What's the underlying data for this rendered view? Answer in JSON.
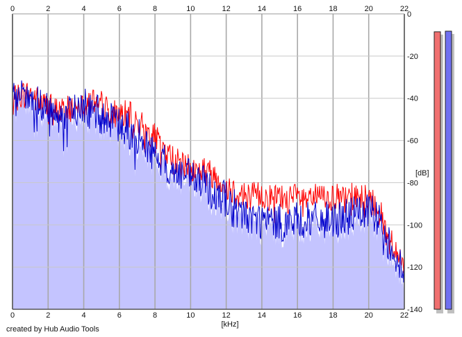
{
  "chart_data": {
    "type": "area",
    "xlabel": "[kHz]",
    "ylabel": "[dB]",
    "xlim": [
      0,
      22
    ],
    "ylim": [
      -140,
      0
    ],
    "x_ticks": [
      0,
      2,
      4,
      6,
      8,
      10,
      12,
      14,
      16,
      18,
      20,
      22
    ],
    "x_tick_labels": [
      "0",
      "2",
      "4",
      "6",
      "8",
      "10",
      "12",
      "14",
      "16",
      "18",
      "20",
      "22"
    ],
    "y_ticks": [
      0,
      -20,
      -40,
      -60,
      -80,
      -100,
      -120,
      -140
    ],
    "y_tick_labels": [
      "0",
      "-20",
      "-40",
      "-60",
      "-80",
      "-100",
      "-120",
      "-140"
    ],
    "grid": true,
    "x_tick_labels_position": "top-and-bottom",
    "y_axis_position": "right",
    "series": [
      {
        "color": "#ff0000",
        "style": "line",
        "x": [
          0,
          0.5,
          1,
          1.5,
          2,
          2.5,
          3,
          3.5,
          4,
          4.5,
          5,
          5.5,
          6,
          6.5,
          7,
          7.5,
          8,
          8.5,
          9,
          9.5,
          10,
          10.5,
          11,
          11.5,
          12,
          12.5,
          13,
          13.5,
          14,
          14.5,
          15,
          15.5,
          16,
          16.5,
          17,
          17.5,
          18,
          18.5,
          19,
          19.5,
          20,
          20.5,
          21,
          21.5,
          22
        ],
        "y": [
          -42,
          -38,
          -38,
          -42,
          -44,
          -46,
          -46,
          -44,
          -41,
          -41,
          -43,
          -47,
          -47,
          -48,
          -51,
          -55,
          -59,
          -64,
          -69,
          -72,
          -74,
          -74,
          -75,
          -77,
          -81,
          -84,
          -86,
          -86,
          -86,
          -87,
          -87,
          -88,
          -87,
          -88,
          -87,
          -87,
          -87,
          -88,
          -87,
          -86,
          -87,
          -91,
          -104,
          -111,
          -121
        ]
      },
      {
        "color": "#0000cc",
        "style": "line",
        "x": [
          0,
          0.5,
          1,
          1.5,
          2,
          2.5,
          3,
          3.5,
          4,
          4.5,
          5,
          5.5,
          6,
          6.5,
          7,
          7.5,
          8,
          8.5,
          9,
          9.5,
          10,
          10.5,
          11,
          11.5,
          12,
          12.5,
          13,
          13.5,
          14,
          14.5,
          15,
          15.5,
          16,
          16.5,
          17,
          17.5,
          18,
          18.5,
          19,
          19.5,
          20,
          20.5,
          21,
          21.5,
          22
        ],
        "y": [
          -42,
          -40,
          -40,
          -44,
          -46,
          -48,
          -48,
          -46,
          -44,
          -46,
          -48,
          -51,
          -53,
          -55,
          -58,
          -62,
          -67,
          -71,
          -75,
          -76,
          -78,
          -80,
          -82,
          -84,
          -88,
          -92,
          -95,
          -97,
          -98,
          -99,
          -99,
          -99,
          -98,
          -98,
          -98,
          -98,
          -97,
          -97,
          -96,
          -94,
          -94,
          -97,
          -106,
          -114,
          -125
        ]
      }
    ],
    "area_color": "#c4c4ff",
    "level_meters": [
      {
        "color": "#f07070",
        "level_db": -8.5
      },
      {
        "color": "#7070f0",
        "level_db": -8.2
      }
    ]
  },
  "footer": {
    "credit": "created by Hub Audio Tools"
  }
}
